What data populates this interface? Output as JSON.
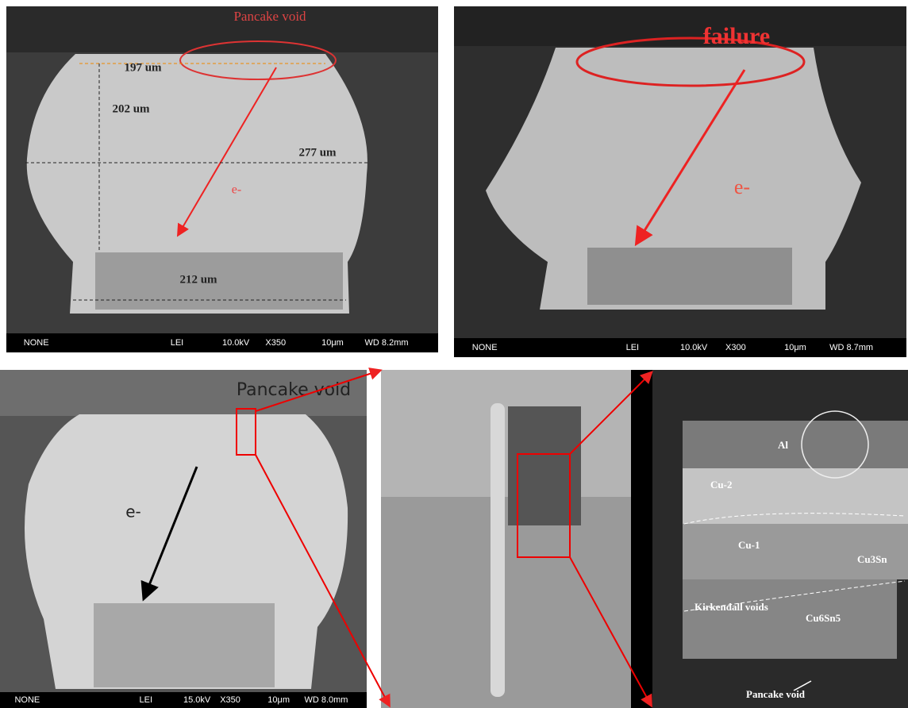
{
  "top_left": {
    "annotation": "Pancake void",
    "dimensions": [
      "197 um",
      "202 um",
      "277 um",
      "212 um"
    ],
    "electron": "e-",
    "info_bar": [
      "NONE",
      "LEI",
      "10.0kV",
      "X350",
      "10μm",
      "WD 8.2mm"
    ]
  },
  "top_right": {
    "annotation": "failure",
    "electron": "e-",
    "info_bar": [
      "NONE",
      "LEI",
      "10.0kV",
      "X300",
      "10μm",
      "WD 8.7mm"
    ]
  },
  "bottom_left": {
    "annotation": "Pancake void",
    "electron": "e-",
    "info_bar": [
      "NONE",
      "LEI",
      "15.0kV",
      "X350",
      "10μm",
      "WD 8.0mm"
    ]
  },
  "bottom_right": {
    "labels": [
      "Al",
      "Cu-2",
      "Cu-1",
      "Cu3Sn",
      "Kirkendall voids",
      "Cu6Sn5",
      "Pancake void"
    ]
  }
}
